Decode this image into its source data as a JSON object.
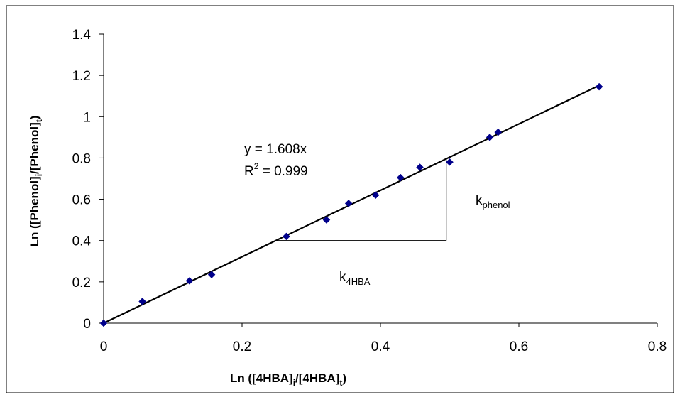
{
  "chart_data": {
    "type": "scatter",
    "xlabel": {
      "main": "Ln ([4HBA]",
      "sub1": "i",
      "mid": "/[4HBA]",
      "sub2": "t",
      "end": ")"
    },
    "ylabel": {
      "main": "Ln ([Phenol]",
      "sub1": "i",
      "mid": "/[Phenol]",
      "sub2": "t",
      "end": ")"
    },
    "xlim": [
      0,
      0.8
    ],
    "ylim": [
      0,
      1.4
    ],
    "x_ticks": [
      "0",
      "0.2",
      "0.4",
      "0.6",
      "0.8"
    ],
    "y_ticks": [
      "0",
      "0.2",
      "0.4",
      "0.6",
      "0.8",
      "1",
      "1.2",
      "1.4"
    ],
    "x_tick_values": [
      0,
      0.2,
      0.4,
      0.6,
      0.8
    ],
    "y_tick_values": [
      0,
      0.2,
      0.4,
      0.6,
      0.8,
      1.0,
      1.2,
      1.4
    ],
    "points": [
      {
        "x": 0.0,
        "y": 0.0
      },
      {
        "x": 0.056,
        "y": 0.105
      },
      {
        "x": 0.124,
        "y": 0.205
      },
      {
        "x": 0.156,
        "y": 0.235
      },
      {
        "x": 0.264,
        "y": 0.42
      },
      {
        "x": 0.322,
        "y": 0.5
      },
      {
        "x": 0.354,
        "y": 0.58
      },
      {
        "x": 0.393,
        "y": 0.62
      },
      {
        "x": 0.429,
        "y": 0.705
      },
      {
        "x": 0.457,
        "y": 0.755
      },
      {
        "x": 0.5,
        "y": 0.78
      },
      {
        "x": 0.558,
        "y": 0.9
      },
      {
        "x": 0.57,
        "y": 0.925
      },
      {
        "x": 0.716,
        "y": 1.145
      }
    ],
    "marker_color": "#00008B",
    "trendline": {
      "slope": 1.608,
      "intercept": 0,
      "x_range": [
        0,
        0.716
      ],
      "color": "#000000"
    },
    "equation": "y = 1.608x",
    "r2": {
      "prefix": "R",
      "sup": "2",
      "rest": " = 0.999"
    },
    "slope_triangle": {
      "x1": 0.25,
      "x2": 0.495,
      "y": 0.4
    },
    "annotations": {
      "k_phenol": {
        "main": "k",
        "sub": "phenol"
      },
      "k_4hba": {
        "main": "k",
        "sub": "4HBA"
      }
    },
    "grid": false,
    "legend": "none"
  }
}
